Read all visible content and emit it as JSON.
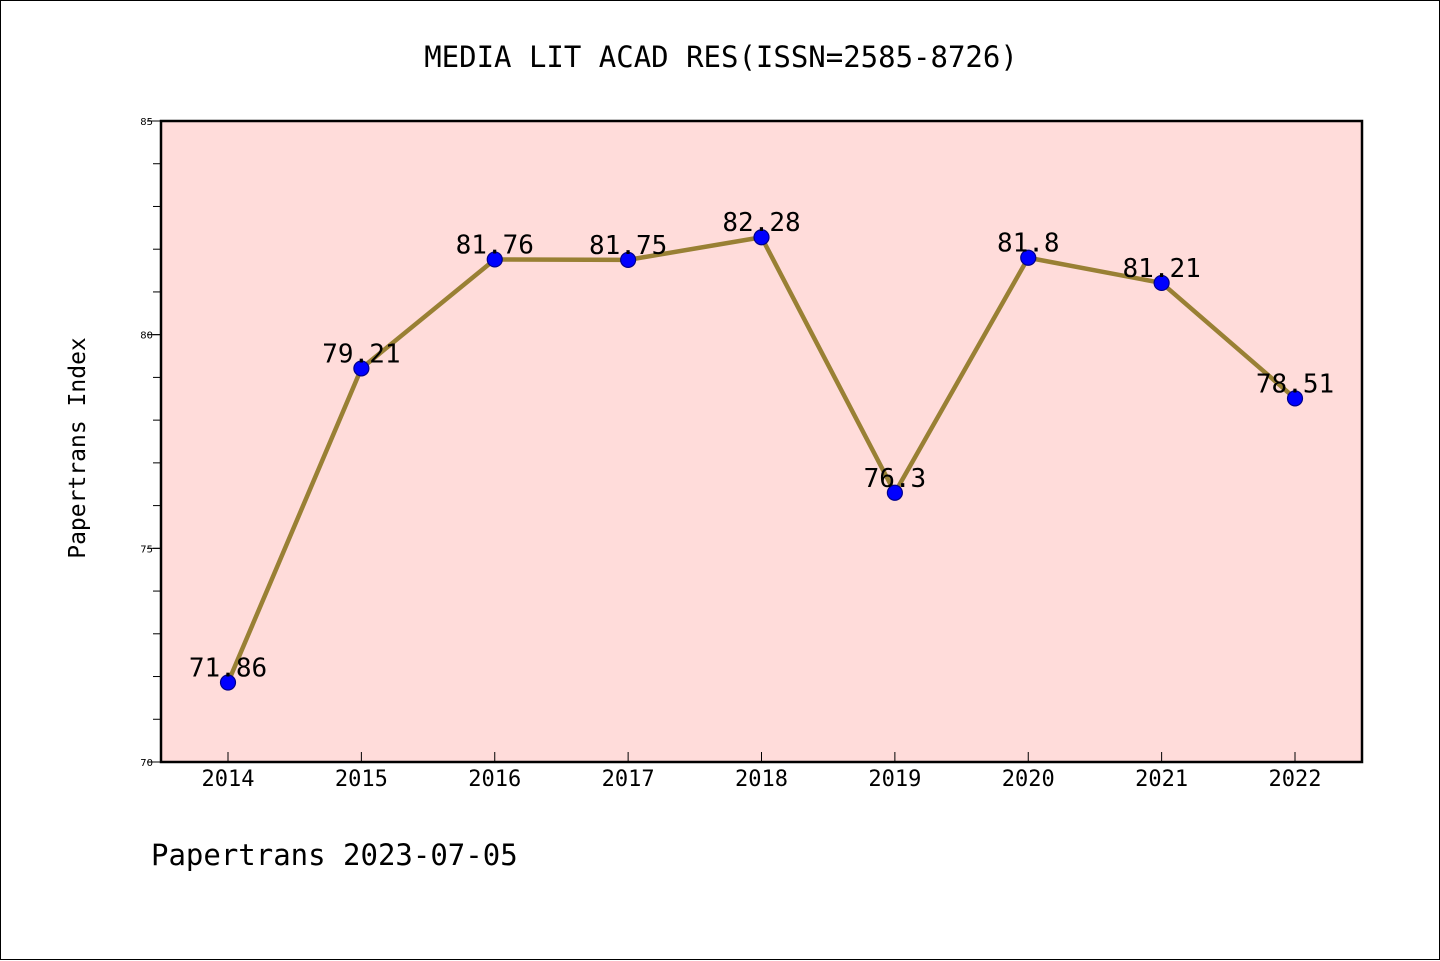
{
  "chart_data": {
    "type": "line",
    "title": "MEDIA LIT ACAD RES(ISSN=2585-8726)",
    "xlabel": "",
    "ylabel": "Papertrans Index",
    "footer": "Papertrans 2023-07-05",
    "categories": [
      "2014",
      "2015",
      "2016",
      "2017",
      "2018",
      "2019",
      "2020",
      "2021",
      "2022"
    ],
    "values": [
      71.86,
      79.21,
      81.76,
      81.75,
      82.28,
      76.3,
      81.8,
      81.21,
      78.51
    ],
    "data_labels": [
      "71.86",
      "79.21",
      "81.76",
      "81.75",
      "82.28",
      "76.3",
      "81.8",
      "81.21",
      "78.51"
    ],
    "ylim": [
      70,
      85
    ],
    "yticks_major": [
      "70",
      "75",
      "80",
      "85"
    ],
    "yticks_major_values": [
      70,
      75,
      80,
      85
    ],
    "y_minor_step": 1,
    "grid": false,
    "legend": "none",
    "colors": {
      "plot_background": "#ffdcda",
      "line": "#998034",
      "marker_fill": "#0000ff",
      "marker_edge": "#00008b",
      "axis": "#000000",
      "text": "#000000"
    }
  }
}
